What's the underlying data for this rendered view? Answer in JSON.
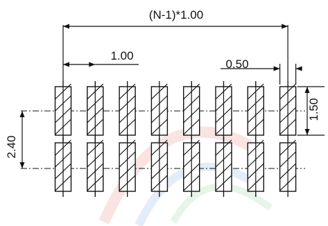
{
  "diagram": {
    "labels": {
      "pitch_total": "(N-1)*1.00",
      "pitch": "1.00",
      "pad_width": "0.50",
      "pad_length": "1.50",
      "row_spacing": "2.40"
    },
    "rows": [
      {
        "name": "top-row",
        "pad_count": 8
      },
      {
        "name": "bottom-row",
        "pad_count": 8
      }
    ],
    "colors": {
      "line": "#111111",
      "background": "#ffffff"
    }
  }
}
